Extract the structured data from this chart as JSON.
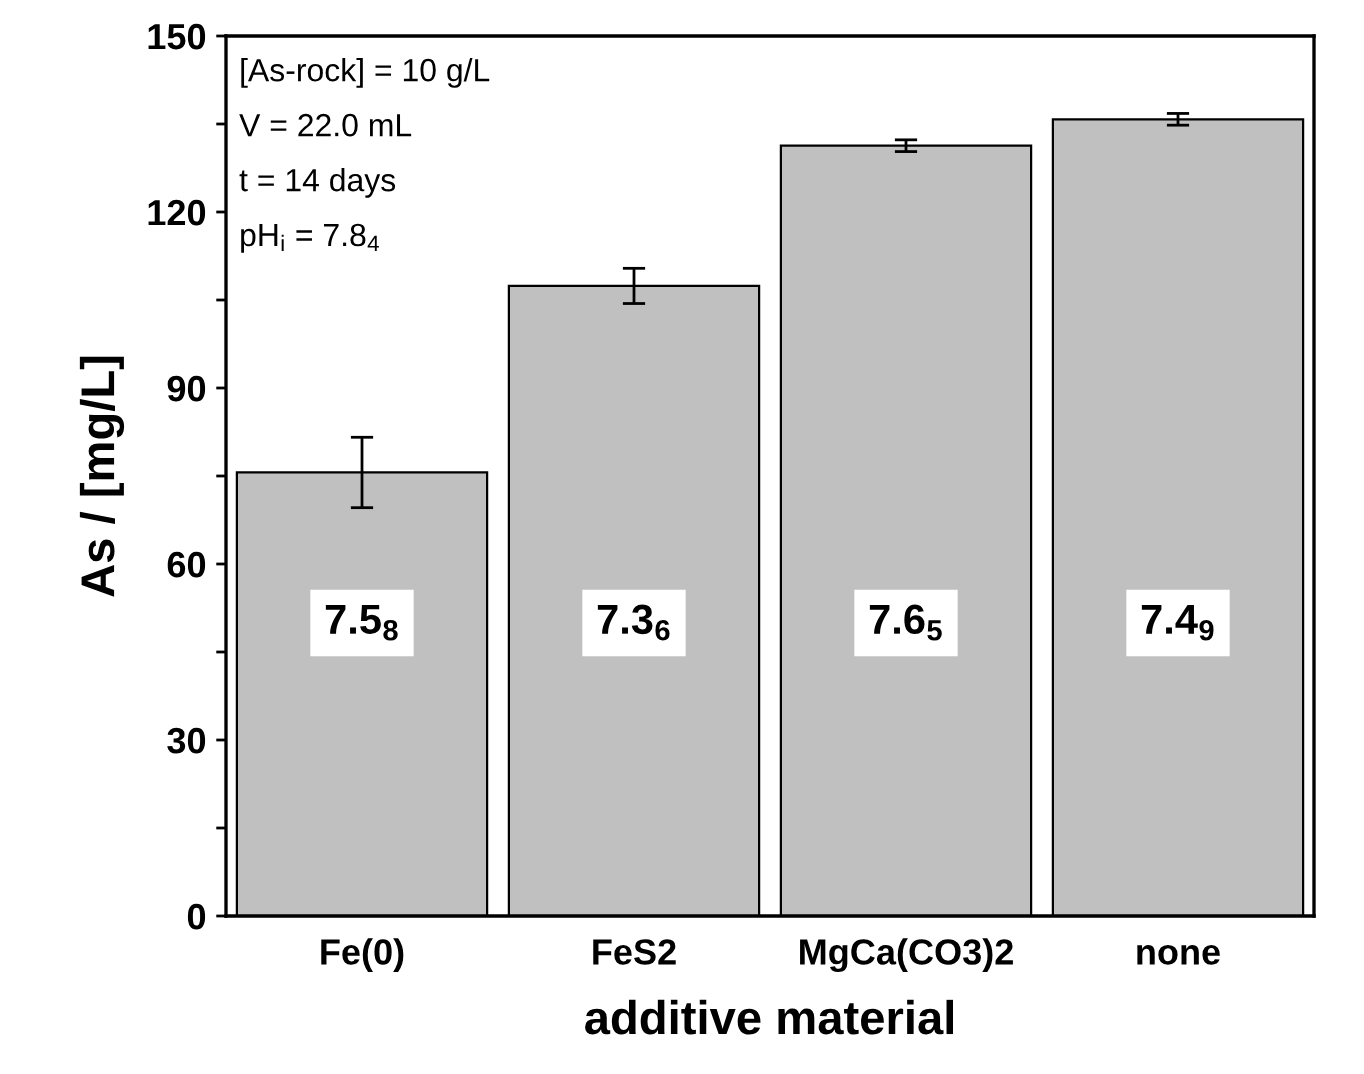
{
  "chart_data": {
    "type": "bar",
    "xlabel": "additive material",
    "ylabel": "As / [mg/L]",
    "categories": [
      "Fe(0)",
      "FeS2",
      "MgCa(CO3)2",
      "none"
    ],
    "values": [
      75.6,
      107.4,
      131.3,
      135.8
    ],
    "errors": [
      6,
      3,
      1,
      1
    ],
    "color": "#c0c0c0",
    "ylim": [
      0,
      150
    ],
    "yticks": [
      0,
      {
        "value": 15,
        "label": null
      },
      30,
      {
        "value": 45,
        "label": null
      },
      60,
      {
        "value": 75,
        "label": null
      },
      90,
      {
        "value": 105,
        "label": null
      },
      120,
      {
        "value": 135,
        "label": null
      },
      150
    ],
    "grid": false,
    "annotations": [
      "[As-rock] = 10 g/L",
      "V = 22.0 mL",
      "t = 14 days",
      "pH$_{i}$ = 7.8$_{4}$",
      "7.5$_{8}$",
      "7.3$_{6}$",
      "7.6$_{5}$",
      "7.4$_{9}$"
    ]
  }
}
